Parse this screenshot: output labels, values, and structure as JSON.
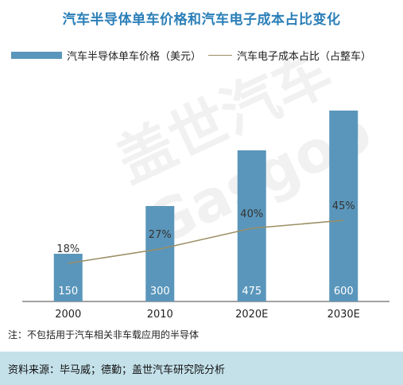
{
  "title": "汽车半导体单车价格和汽车电子成本占比变化",
  "watermark": "盖世汽车 Gasgoo",
  "note": "注：不包括用于汽车相关非车载应用的半导体",
  "source": "资料来源：毕马威；德勤；盖世汽车研究院分析",
  "colors": {
    "bar": "#5a96bb",
    "line": "#9b8e63",
    "title": "#2b7fb8",
    "source_bg": "#c4e1ea"
  },
  "chart_data": {
    "type": "bar",
    "title": "汽车半导体单车价格和汽车电子成本占比变化",
    "categories": [
      "2000",
      "2010",
      "2020E",
      "2030E"
    ],
    "series": [
      {
        "name": "汽车半导体单车价格（美元）",
        "type": "bar",
        "values": [
          150,
          300,
          475,
          600
        ],
        "labels": [
          "150",
          "300",
          "475",
          "600"
        ]
      },
      {
        "name": "汽车电子成本占比（占整车）",
        "type": "line",
        "values": [
          18,
          27,
          40,
          45
        ],
        "labels": [
          "18%",
          "27%",
          "40%",
          "45%"
        ]
      }
    ],
    "legend_position": "top",
    "grid": false
  }
}
